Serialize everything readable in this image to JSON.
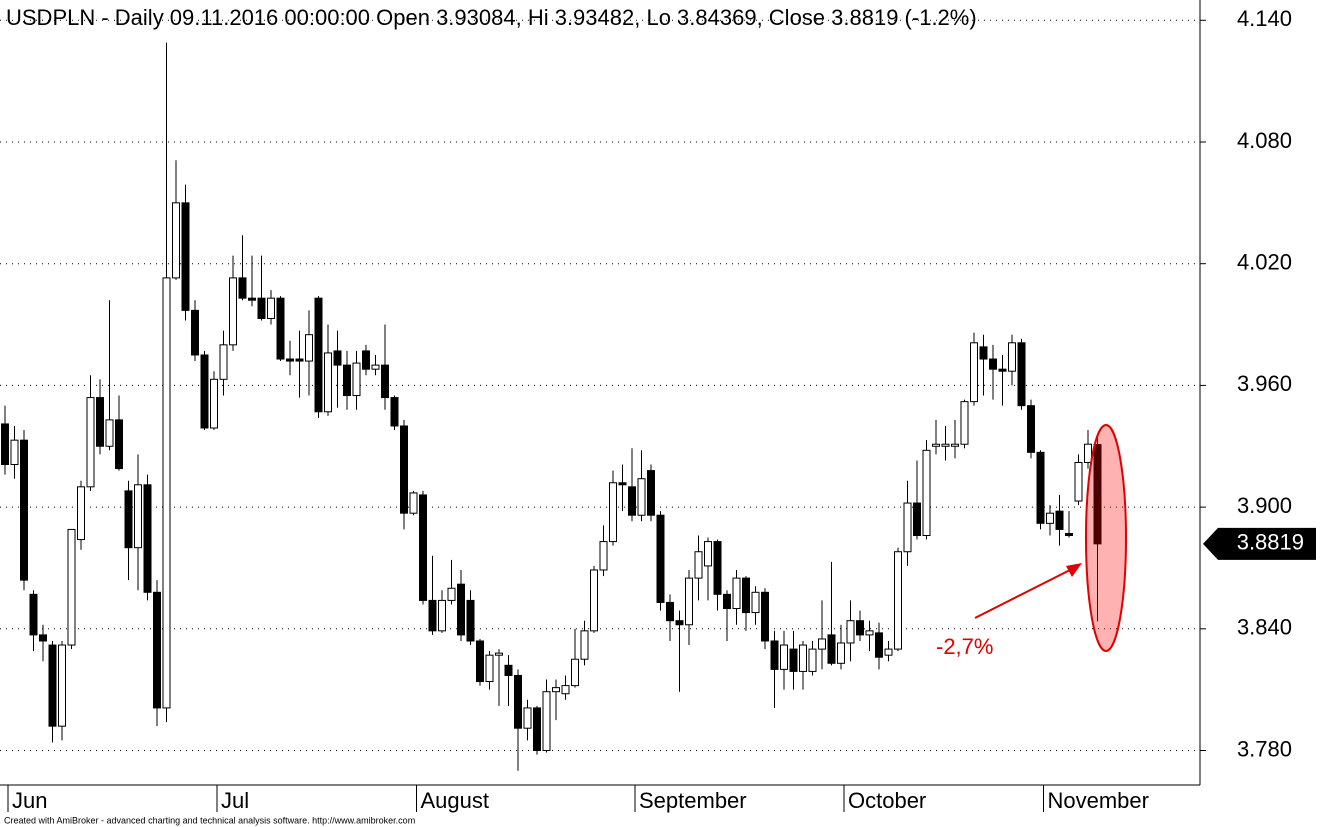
{
  "chart_data": {
    "type": "candlestick",
    "title": "USDPLN - Daily 09.11.2016 00:00:00 Open 3.93084, Hi 3.93482, Lo 3.84369, Close 3.8819 (-1.2%)",
    "annotation": "-2,7%",
    "categories": [
      "Jun",
      null,
      null,
      null,
      null,
      null,
      null,
      null,
      null,
      null,
      null,
      null,
      null,
      null,
      null,
      null,
      null,
      null,
      null,
      null,
      null,
      null,
      "Jul",
      null,
      null,
      null,
      null,
      null,
      null,
      null,
      null,
      null,
      null,
      null,
      null,
      null,
      null,
      null,
      null,
      null,
      null,
      null,
      null,
      "August",
      null,
      null,
      null,
      null,
      null,
      null,
      null,
      null,
      null,
      null,
      null,
      null,
      null,
      null,
      null,
      null,
      null,
      null,
      null,
      null,
      null,
      null,
      "September",
      null,
      null,
      null,
      null,
      null,
      null,
      null,
      null,
      null,
      null,
      null,
      null,
      null,
      null,
      null,
      null,
      null,
      null,
      null,
      null,
      null,
      "October",
      null,
      null,
      null,
      null,
      null,
      null,
      null,
      null,
      null,
      null,
      null,
      null,
      null,
      null,
      null,
      null,
      null,
      null,
      null,
      null,
      "November",
      null,
      null,
      null,
      null,
      null,
      null
    ],
    "open": [
      3.941,
      3.921,
      3.933,
      3.857,
      3.837,
      3.832,
      3.792,
      3.832,
      3.884,
      3.91,
      3.954,
      3.93,
      3.943,
      3.908,
      3.88,
      3.911,
      3.858,
      3.801,
      4.013,
      4.05,
      3.997,
      3.975,
      3.939,
      3.963,
      3.98,
      4.013,
      4.003,
      4.003,
      3.993,
      4.003,
      3.973,
      3.973,
      3.972,
      4.003,
      3.947,
      3.977,
      3.97,
      3.955,
      3.977,
      3.968,
      3.97,
      3.954,
      3.94,
      3.897,
      3.906,
      3.854,
      3.839,
      3.854,
      3.862,
      3.854,
      3.834,
      3.814,
      3.827,
      3.822,
      3.817,
      3.791,
      3.801,
      3.78,
      3.809,
      3.808,
      3.812,
      3.825,
      3.839,
      3.869,
      3.883,
      3.912,
      3.91,
      3.896,
      3.918,
      3.896,
      3.853,
      3.844,
      3.842,
      3.865,
      3.871,
      3.883,
      3.857,
      3.85,
      3.865,
      3.848,
      3.858,
      3.834,
      3.82,
      3.83,
      3.819,
      3.819,
      3.83,
      3.837,
      3.823,
      3.833,
      3.844,
      3.837,
      3.838,
      3.827,
      3.83,
      3.878,
      3.902,
      3.886,
      3.93,
      3.93,
      3.93,
      3.931,
      3.952,
      3.979,
      3.973,
      3.968,
      3.967,
      3.981,
      3.95,
      3.927,
      3.892,
      3.898,
      3.887,
      3.903,
      3.922,
      3.93084
    ],
    "high": [
      3.95,
      3.94,
      3.938,
      3.859,
      3.842,
      3.834,
      3.834,
      3.889,
      3.913,
      3.965,
      3.963,
      4.002,
      3.955,
      3.913,
      3.926,
      3.916,
      3.864,
      4.129,
      4.071,
      4.059,
      4.002,
      3.977,
      3.967,
      3.987,
      4.024,
      4.034,
      4.024,
      4.024,
      4.007,
      4.004,
      3.982,
      3.987,
      3.997,
      4.004,
      3.99,
      3.987,
      3.977,
      3.977,
      3.98,
      3.975,
      3.99,
      3.955,
      3.943,
      3.908,
      3.908,
      3.876,
      3.859,
      3.874,
      3.869,
      3.859,
      3.835,
      3.829,
      3.83,
      3.827,
      3.82,
      3.805,
      3.802,
      3.815,
      3.815,
      3.817,
      3.84,
      3.844,
      3.871,
      3.891,
      3.918,
      3.921,
      3.929,
      3.928,
      3.921,
      3.898,
      3.857,
      3.849,
      3.869,
      3.886,
      3.885,
      3.884,
      3.859,
      3.869,
      3.866,
      3.861,
      3.86,
      3.839,
      3.839,
      3.839,
      3.834,
      3.834,
      3.854,
      3.873,
      3.842,
      3.854,
      3.849,
      3.844,
      3.843,
      3.834,
      3.88,
      3.913,
      3.923,
      3.933,
      3.943,
      3.94,
      3.943,
      3.953,
      3.986,
      3.985,
      3.98,
      3.975,
      3.985,
      3.983,
      3.953,
      3.928,
      3.901,
      3.906,
      3.898,
      3.926,
      3.938,
      3.93482
    ],
    "low": [
      3.916,
      3.914,
      3.859,
      3.829,
      3.824,
      3.784,
      3.785,
      3.83,
      3.879,
      3.908,
      3.926,
      3.928,
      3.918,
      3.864,
      3.859,
      3.854,
      3.792,
      3.794,
      4.012,
      3.992,
      3.972,
      3.938,
      3.938,
      3.955,
      3.977,
      4.002,
      3.999,
      3.992,
      3.99,
      3.972,
      3.965,
      3.954,
      3.955,
      3.944,
      3.945,
      3.949,
      3.948,
      3.948,
      3.965,
      3.965,
      3.948,
      3.938,
      3.889,
      3.896,
      3.852,
      3.837,
      3.838,
      3.852,
      3.834,
      3.832,
      3.812,
      3.81,
      3.802,
      3.802,
      3.77,
      3.785,
      3.778,
      3.779,
      3.795,
      3.805,
      3.811,
      3.822,
      3.838,
      3.866,
      3.881,
      3.898,
      3.893,
      3.893,
      3.893,
      3.849,
      3.834,
      3.809,
      3.832,
      3.854,
      3.854,
      3.849,
      3.834,
      3.842,
      3.839,
      3.842,
      3.83,
      3.801,
      3.81,
      3.81,
      3.81,
      3.817,
      3.82,
      3.822,
      3.82,
      3.824,
      3.834,
      3.829,
      3.82,
      3.824,
      3.829,
      3.871,
      3.884,
      3.884,
      3.926,
      3.923,
      3.924,
      3.929,
      3.95,
      3.955,
      3.953,
      3.95,
      3.96,
      3.948,
      3.924,
      3.889,
      3.886,
      3.881,
      3.885,
      3.901,
      3.919,
      3.84369
    ],
    "close": [
      3.921,
      3.933,
      3.864,
      3.837,
      3.834,
      3.792,
      3.832,
      3.889,
      3.91,
      3.954,
      3.93,
      3.943,
      3.919,
      3.88,
      3.911,
      3.858,
      3.801,
      4.013,
      4.05,
      3.997,
      3.975,
      3.939,
      3.963,
      3.98,
      4.013,
      4.003,
      4.002,
      3.993,
      4.003,
      3.973,
      3.972,
      3.972,
      3.985,
      3.947,
      3.976,
      3.97,
      3.955,
      3.971,
      3.968,
      3.97,
      3.954,
      3.94,
      3.897,
      3.907,
      3.854,
      3.839,
      3.854,
      3.86,
      3.837,
      3.834,
      3.814,
      3.827,
      3.828,
      3.817,
      3.791,
      3.801,
      3.78,
      3.809,
      3.811,
      3.812,
      3.825,
      3.839,
      3.869,
      3.883,
      3.912,
      3.911,
      3.896,
      3.914,
      3.896,
      3.853,
      3.844,
      3.842,
      3.865,
      3.878,
      3.883,
      3.857,
      3.85,
      3.865,
      3.848,
      3.858,
      3.834,
      3.82,
      3.832,
      3.819,
      3.832,
      3.83,
      3.835,
      3.823,
      3.833,
      3.844,
      3.837,
      3.839,
      3.826,
      3.83,
      3.878,
      3.902,
      3.886,
      3.928,
      3.931,
      3.931,
      3.931,
      3.952,
      3.981,
      3.973,
      3.968,
      3.967,
      3.981,
      3.95,
      3.927,
      3.892,
      3.897,
      3.889,
      3.886,
      3.922,
      3.931,
      3.8819
    ],
    "up_color": "#ffffff",
    "down_color": "#000000",
    "ylim": [
      3.763,
      4.15
    ],
    "yticks": [
      {
        "value": 3.78,
        "label": "3.780"
      },
      {
        "value": 3.84,
        "label": "3.840"
      },
      {
        "value": 3.9,
        "label": "3.900"
      },
      {
        "value": 3.96,
        "label": "3.960"
      },
      {
        "value": 4.02,
        "label": "4.020"
      },
      {
        "value": 4.08,
        "label": "4.080"
      },
      {
        "value": 4.14,
        "label": "4.140"
      }
    ],
    "grid": true
  },
  "footer": "Created with AmiBroker - advanced charting and technical analysis software. http://www.amibroker.com"
}
